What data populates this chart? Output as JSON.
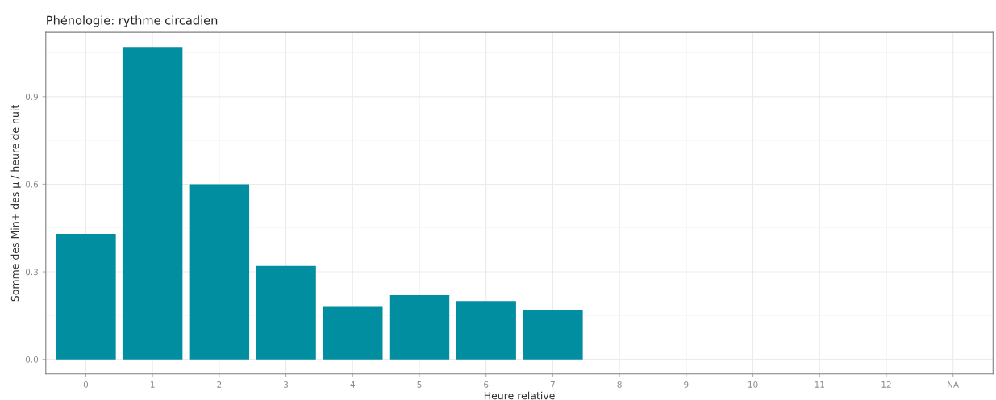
{
  "chart_data": {
    "type": "bar",
    "title": "Phénologie: rythme circadien",
    "xlabel": "Heure relative",
    "ylabel": "Somme des Min+ des µ / heure de nuit",
    "categories": [
      "0",
      "1",
      "2",
      "3",
      "4",
      "5",
      "6",
      "7",
      "8",
      "9",
      "10",
      "11",
      "12",
      "NA"
    ],
    "values": [
      0.43,
      1.07,
      0.6,
      0.32,
      0.18,
      0.22,
      0.2,
      0.17,
      null,
      null,
      null,
      null,
      null,
      null
    ],
    "color": "#008ea0",
    "ylim": [
      -0.05,
      1.12
    ],
    "yticks": [
      {
        "value": 0,
        "label": "0.0"
      },
      {
        "value": 0.3,
        "label": "0.3"
      },
      {
        "value": 0.6,
        "label": "0.6"
      },
      {
        "value": 0.9,
        "label": "0.9"
      }
    ],
    "grid": true
  }
}
